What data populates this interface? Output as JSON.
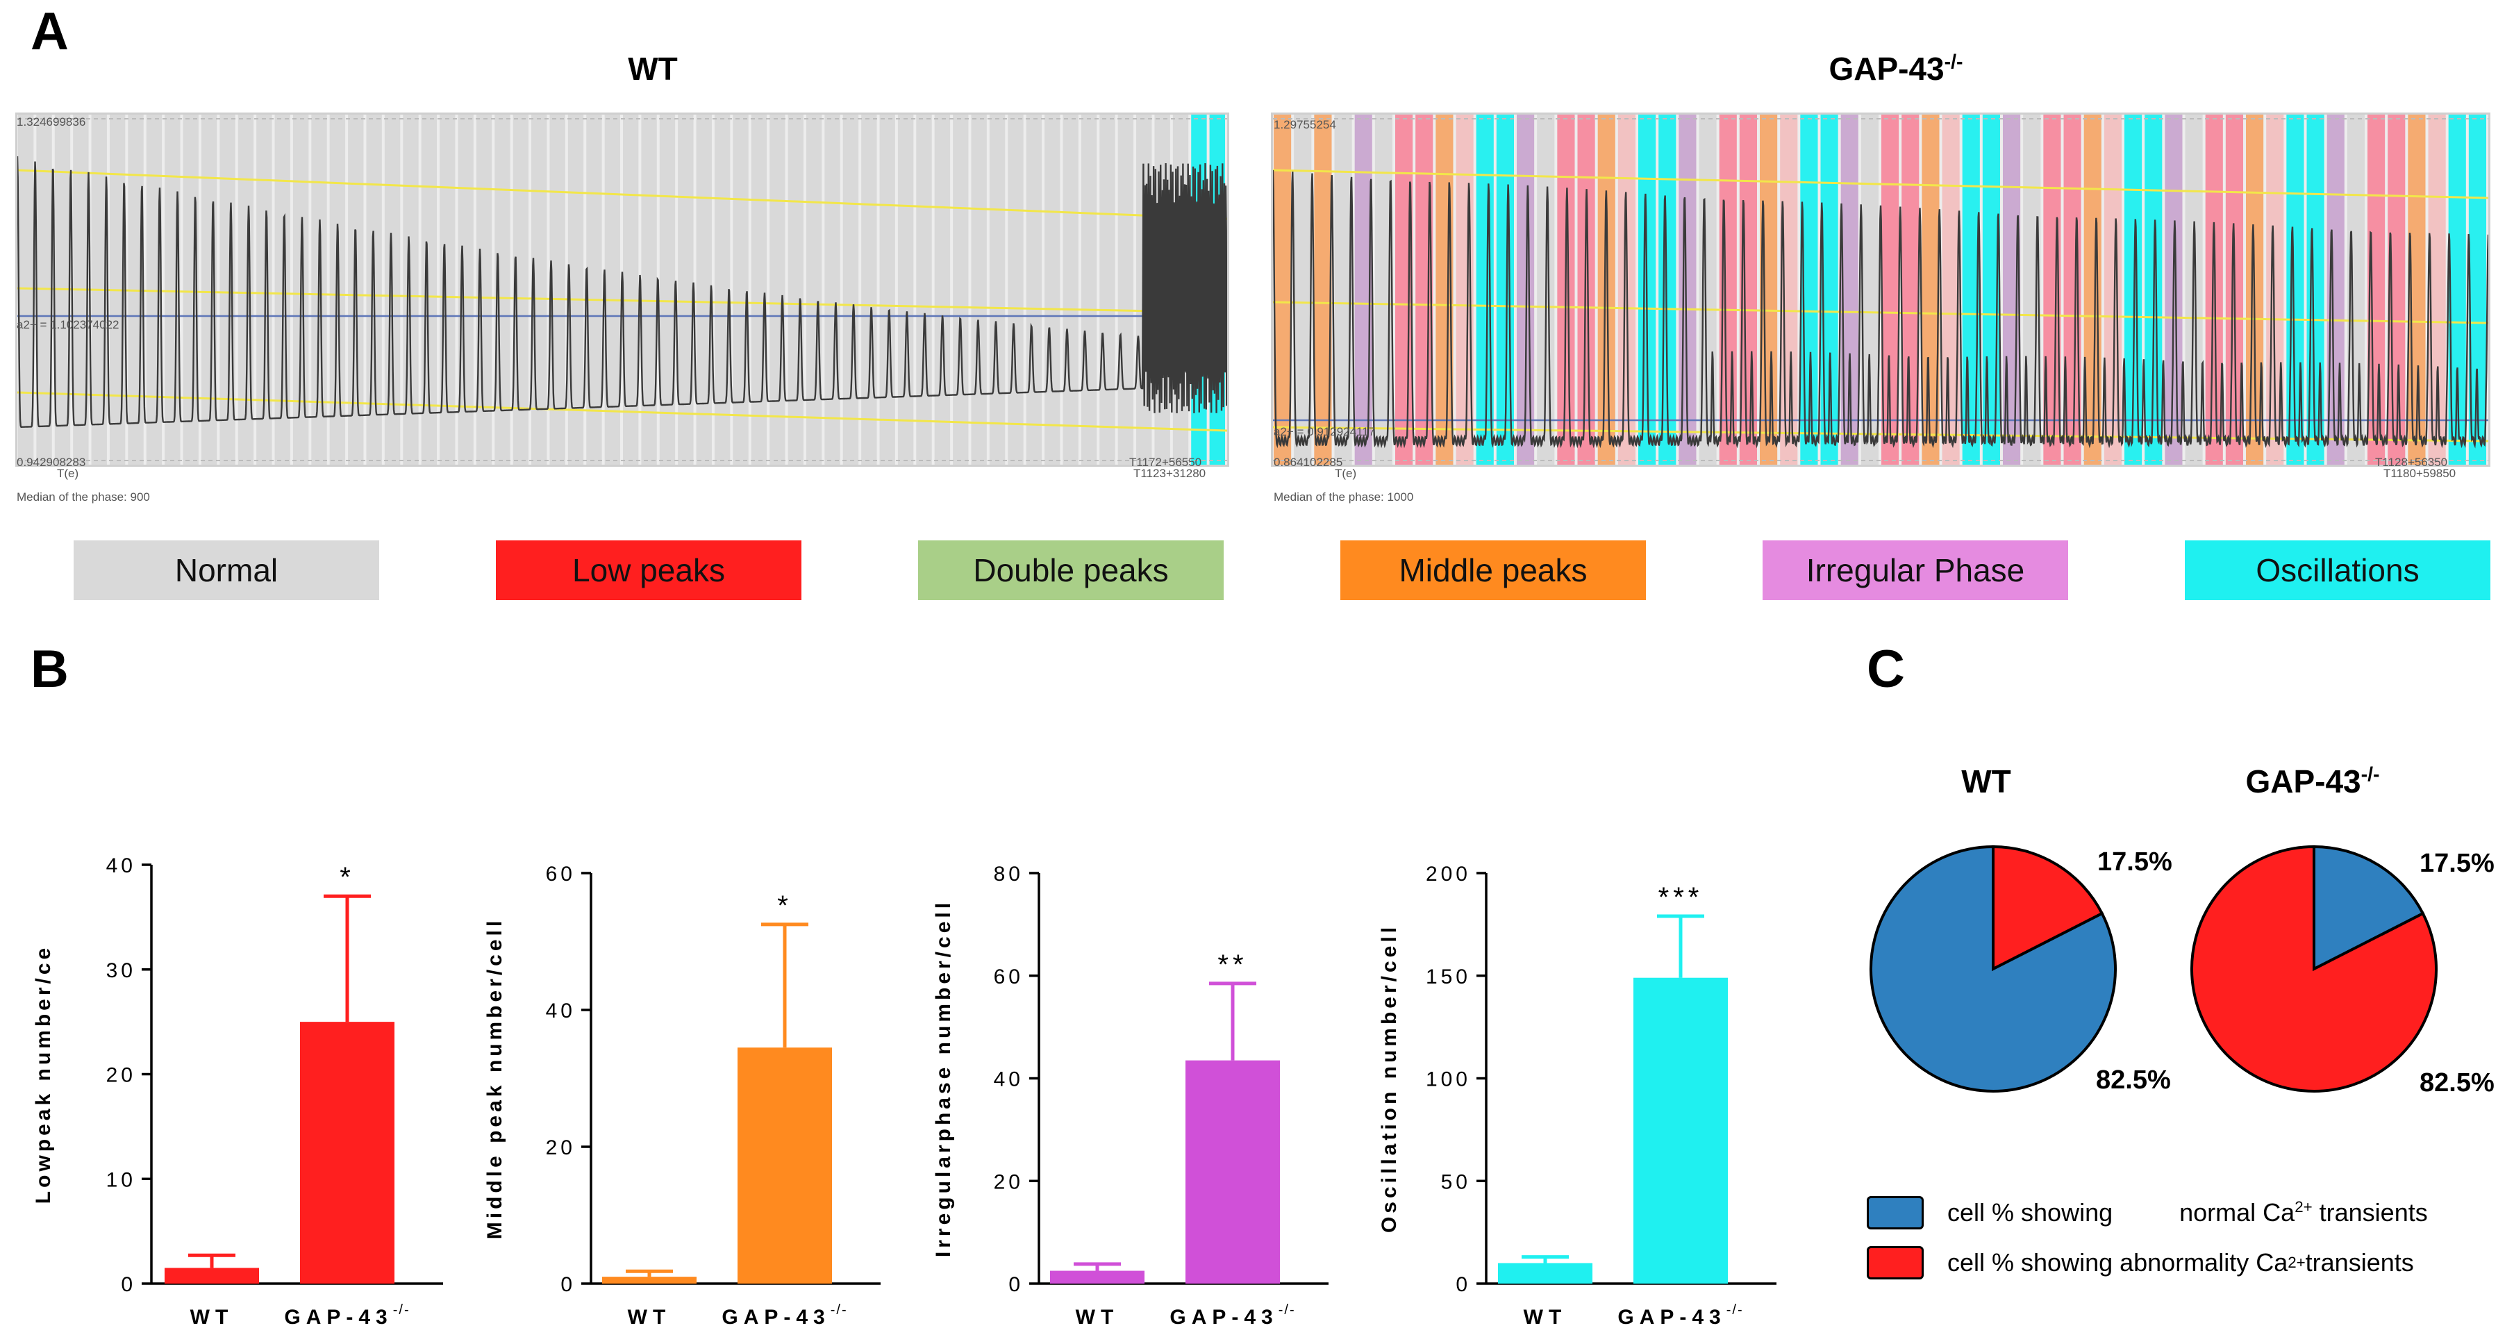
{
  "panel_a": {
    "letter": "A",
    "traces": [
      {
        "title": "WT",
        "title_sup": "",
        "max_label": "1.324699836",
        "mid_label": "a2+ = 1.102374022",
        "min_label": "0.942908283",
        "start_label": "T(e)",
        "end_label": "T1172+56550",
        "end_label2": "T1123+31280",
        "median_label": "Median of the phase: 900"
      },
      {
        "title": "GAP-43",
        "title_sup": "-/-",
        "max_label": "1.29755254",
        "mid_label": "a2+ = 0.912924117",
        "min_label": "0.864102285",
        "start_label": "T(e)",
        "end_label": "T1128+56350",
        "end_label2": "T1180+59850",
        "median_label": "Median of the phase: 1000"
      }
    ],
    "phase_legend": [
      {
        "label": "Normal",
        "color": "#d9d9d9"
      },
      {
        "label": "Low peaks",
        "color": "#ff1f1f"
      },
      {
        "label": "Double peaks",
        "color": "#a9cf88"
      },
      {
        "label": "Middle peaks",
        "color": "#ff8a1f"
      },
      {
        "label": "Irregular Phase",
        "color": "#e58be0"
      },
      {
        "label": "Oscillations",
        "color": "#1ff0f0"
      }
    ]
  },
  "panel_b": {
    "letter": "B"
  },
  "panel_c": {
    "letter": "C",
    "pies": [
      {
        "title": "WT",
        "title_sup": "",
        "upper_pct": "17.5%",
        "lower_pct": "82.5%"
      },
      {
        "title": "GAP-43",
        "title_sup": "-/-",
        "upper_pct": "17.5%",
        "lower_pct": "82.5%"
      }
    ],
    "legend": [
      {
        "text": "cell % showing",
        "text_right": "normal Ca",
        "sup": "2+",
        "tail": " transients",
        "color": "#2f80bf"
      },
      {
        "text": "cell % showing abnormality Ca",
        "text_right": "",
        "sup": "2+",
        "tail": " transients",
        "color": "#ff1f1f"
      }
    ]
  },
  "chart_data": [
    {
      "type": "bar",
      "ylabel": "Lowpeak number/ce",
      "categories": [
        "WT",
        "GAP-43"
      ],
      "category_sup": [
        "",
        "-/-"
      ],
      "values": [
        1.5,
        25
      ],
      "errors": [
        1.2,
        12
      ],
      "ylim": [
        0,
        40
      ],
      "yticks": [
        0,
        10,
        20,
        30,
        40
      ],
      "significance": "*",
      "color": "#ff1f1f"
    },
    {
      "type": "bar",
      "ylabel": "Middle peak number/cell",
      "categories": [
        "WT",
        "GAP-43"
      ],
      "category_sup": [
        "",
        "-/-"
      ],
      "values": [
        1,
        34.5
      ],
      "errors": [
        0.8,
        18
      ],
      "ylim": [
        0,
        60
      ],
      "yticks": [
        0,
        20,
        40,
        60
      ],
      "significance": "*",
      "color": "#ff8a1f"
    },
    {
      "type": "bar",
      "ylabel": "Irregularphase number/cell",
      "categories": [
        "WT",
        "GAP-43"
      ],
      "category_sup": [
        "",
        "-/-"
      ],
      "values": [
        2.5,
        43.5
      ],
      "errors": [
        1.3,
        15
      ],
      "ylim": [
        0,
        80
      ],
      "yticks": [
        0,
        20,
        40,
        60,
        80
      ],
      "significance": "**",
      "color": "#d050d8"
    },
    {
      "type": "bar",
      "ylabel": "Oscillation number/cell",
      "categories": [
        "WT",
        "GAP-43"
      ],
      "category_sup": [
        "",
        "-/-"
      ],
      "values": [
        10,
        149
      ],
      "errors": [
        3,
        30
      ],
      "ylim": [
        0,
        200
      ],
      "yticks": [
        0,
        50,
        100,
        150,
        200
      ],
      "significance": "***",
      "color": "#1ff0f0"
    },
    {
      "type": "pie",
      "title": "WT",
      "slices": [
        {
          "label": "normal Ca2+ transients",
          "value": 82.5,
          "color": "#2f80bf"
        },
        {
          "label": "abnormality Ca2+ transients",
          "value": 17.5,
          "color": "#ff1f1f"
        }
      ]
    },
    {
      "type": "pie",
      "title": "GAP-43-/-",
      "slices": [
        {
          "label": "normal Ca2+ transients",
          "value": 17.5,
          "color": "#2f80bf"
        },
        {
          "label": "abnormality Ca2+ transients",
          "value": 82.5,
          "color": "#ff1f1f"
        }
      ]
    }
  ]
}
